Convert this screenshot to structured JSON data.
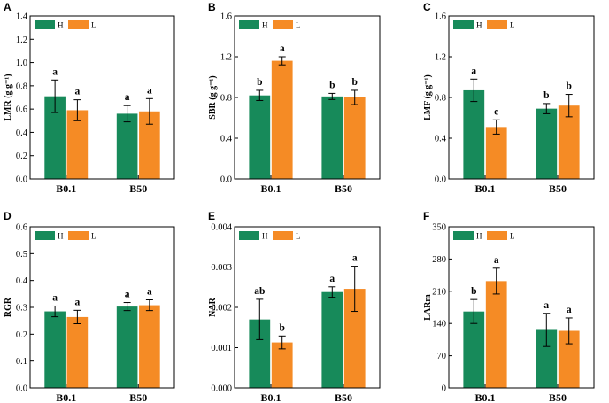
{
  "colors": {
    "H": "#178a5a",
    "L": "#f58b25",
    "axis": "#000000"
  },
  "chart_data": [
    {
      "panel": "A",
      "type": "bar",
      "ylabel": "LMR (g g⁻¹)",
      "categories": [
        "B0.1",
        "B50"
      ],
      "ylim": [
        0,
        1.4
      ],
      "yticks": [
        "0.0",
        "0.2",
        "0.4",
        "0.6",
        "0.8",
        "1.0",
        "1.2",
        "1.4"
      ],
      "series": [
        {
          "name": "H",
          "values": [
            0.71,
            0.56
          ],
          "errors": [
            0.14,
            0.07
          ],
          "labels": [
            "a",
            "a"
          ]
        },
        {
          "name": "L",
          "values": [
            0.59,
            0.58
          ],
          "errors": [
            0.09,
            0.11
          ],
          "labels": [
            "a",
            "a"
          ]
        }
      ]
    },
    {
      "panel": "B",
      "type": "bar",
      "ylabel": "SBR (g g⁻¹)",
      "categories": [
        "B0.1",
        "B50"
      ],
      "ylim": [
        0,
        1.6
      ],
      "yticks": [
        "0.0",
        "0.4",
        "0.8",
        "1.2",
        "1.6"
      ],
      "series": [
        {
          "name": "H",
          "values": [
            0.82,
            0.81
          ],
          "errors": [
            0.05,
            0.03
          ],
          "labels": [
            "b",
            "b"
          ]
        },
        {
          "name": "L",
          "values": [
            1.16,
            0.8
          ],
          "errors": [
            0.04,
            0.07
          ],
          "labels": [
            "a",
            "b"
          ]
        }
      ]
    },
    {
      "panel": "C",
      "type": "bar",
      "ylabel": "LMF (g g⁻¹)",
      "categories": [
        "B0.1",
        "B50"
      ],
      "ylim": [
        0,
        1.6
      ],
      "yticks": [
        "0.0",
        "0.4",
        "0.8",
        "1.2",
        "1.6"
      ],
      "series": [
        {
          "name": "H",
          "values": [
            0.87,
            0.69
          ],
          "errors": [
            0.11,
            0.05
          ],
          "labels": [
            "a",
            "b"
          ]
        },
        {
          "name": "L",
          "values": [
            0.51,
            0.72
          ],
          "errors": [
            0.07,
            0.11
          ],
          "labels": [
            "c",
            "b"
          ]
        }
      ]
    },
    {
      "panel": "D",
      "type": "bar",
      "ylabel": "RGR",
      "categories": [
        "B0.1",
        "B50"
      ],
      "ylim": [
        0,
        0.6
      ],
      "yticks": [
        "0.0",
        "0.1",
        "0.2",
        "0.3",
        "0.4",
        "0.5",
        "0.6"
      ],
      "series": [
        {
          "name": "H",
          "values": [
            0.285,
            0.303
          ],
          "errors": [
            0.02,
            0.015
          ],
          "labels": [
            "a",
            "a"
          ]
        },
        {
          "name": "L",
          "values": [
            0.264,
            0.308
          ],
          "errors": [
            0.025,
            0.02
          ],
          "labels": [
            "a",
            "a"
          ]
        }
      ]
    },
    {
      "panel": "E",
      "type": "bar",
      "ylabel": "NAR",
      "categories": [
        "B0.1",
        "B50"
      ],
      "ylim": [
        0,
        0.004
      ],
      "yticks": [
        "0.000",
        "0.001",
        "0.002",
        "0.003",
        "0.004"
      ],
      "series": [
        {
          "name": "H",
          "values": [
            0.0017,
            0.00238
          ],
          "errors": [
            0.0005,
            0.00013
          ],
          "labels": [
            "ab",
            "a"
          ]
        },
        {
          "name": "L",
          "values": [
            0.00113,
            0.00246
          ],
          "errors": [
            0.00016,
            0.00056
          ],
          "labels": [
            "b",
            "a"
          ]
        }
      ]
    },
    {
      "panel": "F",
      "type": "bar",
      "ylabel": "LARm",
      "categories": [
        "B0.1",
        "B50"
      ],
      "ylim": [
        0,
        350
      ],
      "yticks": [
        "0",
        "70",
        "140",
        "210",
        "280",
        "350"
      ],
      "series": [
        {
          "name": "H",
          "values": [
            166,
            126
          ],
          "errors": [
            26,
            36
          ],
          "labels": [
            "b",
            "a"
          ]
        },
        {
          "name": "L",
          "values": [
            232,
            124
          ],
          "errors": [
            28,
            28
          ],
          "labels": [
            "a",
            "a"
          ]
        }
      ]
    }
  ]
}
